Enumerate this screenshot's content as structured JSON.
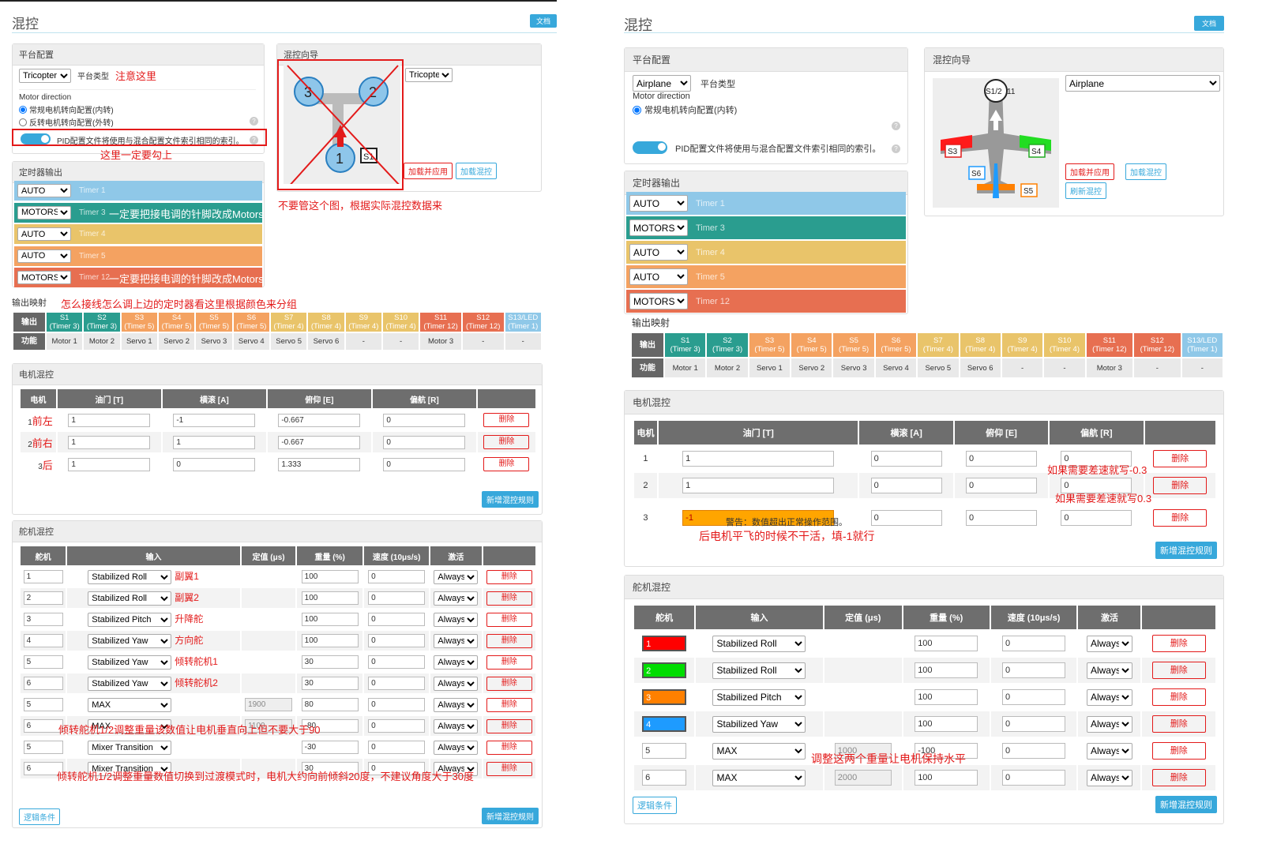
{
  "left": {
    "header": {
      "title": "混控",
      "doc": "文档"
    },
    "platform": {
      "title": "平台配置",
      "type_value": "Tricopter",
      "type_label": "平台类型",
      "note_here": "注意这里",
      "motor_direction": "Motor direction",
      "dir_normal": "常规电机转向配置(内转)",
      "dir_reverse": "反转电机转向配置(外转)",
      "pid_toggle_label": "PID配置文件将使用与混合配置文件索引相同的索引。",
      "note_check": "这里一定要勾上"
    },
    "wizard": {
      "title": "混控向导",
      "type_value": "Tricopter",
      "load_apply": "加载并应用",
      "load_mix": "加载混控",
      "note": "不要管这个图，根据实际混控数据来",
      "motor_labels": [
        "3",
        "2",
        "1"
      ],
      "servo_label": "S1"
    },
    "timers": {
      "title": "定时器输出",
      "rows": [
        {
          "mode": "AUTO",
          "timer": "Timer 1",
          "color": "#8fc8e8"
        },
        {
          "mode": "MOTORS",
          "timer": "Timer 3",
          "color": "#2a9d8f"
        },
        {
          "mode": "AUTO",
          "timer": "Timer 4",
          "color": "#e9c46a"
        },
        {
          "mode": "AUTO",
          "timer": "Timer 5",
          "color": "#f4a261"
        },
        {
          "mode": "MOTORS",
          "timer": "Timer 12",
          "color": "#e76f51"
        }
      ],
      "note_motors": "一定要把接电调的针脚改成Motors"
    },
    "mapping": {
      "title": "输出映射",
      "note": "怎么接线怎么调上边的定时器看这里根据颜色来分组",
      "row_out": "输出",
      "row_fn": "功能",
      "outputs": [
        {
          "s": "S1",
          "t": "(Timer 3)",
          "color": "#2a9d8f",
          "fn": "Motor 1"
        },
        {
          "s": "S2",
          "t": "(Timer 3)",
          "color": "#2a9d8f",
          "fn": "Motor 2"
        },
        {
          "s": "S3",
          "t": "(Timer 5)",
          "color": "#f4a261",
          "fn": "Servo 1"
        },
        {
          "s": "S4",
          "t": "(Timer 5)",
          "color": "#f4a261",
          "fn": "Servo 2"
        },
        {
          "s": "S5",
          "t": "(Timer 5)",
          "color": "#f4a261",
          "fn": "Servo 3"
        },
        {
          "s": "S6",
          "t": "(Timer 5)",
          "color": "#f4a261",
          "fn": "Servo 4"
        },
        {
          "s": "S7",
          "t": "(Timer 4)",
          "color": "#e9c46a",
          "fn": "Servo 5"
        },
        {
          "s": "S8",
          "t": "(Timer 4)",
          "color": "#e9c46a",
          "fn": "Servo 6"
        },
        {
          "s": "S9",
          "t": "(Timer 4)",
          "color": "#e9c46a",
          "fn": "-"
        },
        {
          "s": "S10",
          "t": "(Timer 4)",
          "color": "#e9c46a",
          "fn": "-"
        },
        {
          "s": "S11",
          "t": "(Timer 12)",
          "color": "#e76f51",
          "fn": "Motor 3"
        },
        {
          "s": "S12",
          "t": "(Timer 12)",
          "color": "#e76f51",
          "fn": "-"
        },
        {
          "s": "S13/LED",
          "t": "(Timer 1)",
          "color": "#8fc8e8",
          "fn": "-"
        }
      ]
    },
    "motor_mix": {
      "title": "电机混控",
      "headers": [
        "电机",
        "油门 [T]",
        "横滚 [A]",
        "俯仰 [E]",
        "偏航 [R]",
        ""
      ],
      "rows": [
        {
          "idx": "1",
          "note": "前左",
          "t": "1",
          "a": "-1",
          "e": "-0.667",
          "r": "0"
        },
        {
          "idx": "2",
          "note": "前右",
          "t": "1",
          "a": "1",
          "e": "-0.667",
          "r": "0"
        },
        {
          "idx": "3",
          "note": "后",
          "t": "1",
          "a": "0",
          "e": "1.333",
          "r": "0"
        }
      ],
      "delete": "删除",
      "add": "新增混控规则"
    },
    "servo_mix": {
      "title": "舵机混控",
      "headers": [
        "舵机",
        "输入",
        "定值 (μs)",
        "重量 (%)",
        "速度 (10μs/s)",
        "激活",
        ""
      ],
      "rows": [
        {
          "servo": "1",
          "input": "Stabilized Roll",
          "note": "副翼1",
          "fixed": "",
          "weight": "100",
          "speed": "0",
          "active": "Always"
        },
        {
          "servo": "2",
          "input": "Stabilized Roll",
          "note": "副翼2",
          "fixed": "",
          "weight": "100",
          "speed": "0",
          "active": "Always"
        },
        {
          "servo": "3",
          "input": "Stabilized Pitch",
          "note": "升降舵",
          "fixed": "",
          "weight": "100",
          "speed": "0",
          "active": "Always"
        },
        {
          "servo": "4",
          "input": "Stabilized Yaw",
          "note": "方向舵",
          "fixed": "",
          "weight": "100",
          "speed": "0",
          "active": "Always"
        },
        {
          "servo": "5",
          "input": "Stabilized Yaw",
          "note": "倾转舵机1",
          "fixed": "",
          "weight": "30",
          "speed": "0",
          "active": "Always"
        },
        {
          "servo": "6",
          "input": "Stabilized Yaw",
          "note": "倾转舵机2",
          "fixed": "",
          "weight": "30",
          "speed": "0",
          "active": "Always"
        },
        {
          "servo": "5",
          "input": "MAX",
          "note": "",
          "fixed": "1900",
          "weight": "80",
          "speed": "0",
          "active": "Always"
        },
        {
          "servo": "6",
          "input": "MAX",
          "note": "",
          "fixed": "1100",
          "weight": "-80",
          "speed": "0",
          "active": "Always"
        },
        {
          "servo": "5",
          "input": "Mixer Transition",
          "note": "",
          "fixed": "",
          "weight": "-30",
          "speed": "0",
          "active": "Always"
        },
        {
          "servo": "6",
          "input": "Mixer Transition",
          "note": "",
          "fixed": "",
          "weight": "30",
          "speed": "0",
          "active": "Always"
        }
      ],
      "note_max": "倾转舵机1/2调整重量该数值让电机垂直向上但不要大于90",
      "note_transition": "倾转舵机1/2调整重量数值切换到过渡模式时，电机大约向前倾斜20度，不建议角度大于30度",
      "delete": "删除",
      "logic": "逻辑条件",
      "add": "新增混控规则"
    }
  },
  "right": {
    "header": {
      "title": "混控",
      "doc": "文档"
    },
    "platform": {
      "title": "平台配置",
      "type_value": "Airplane",
      "type_label": "平台类型",
      "motor_direction": "Motor direction",
      "dir_normal": "常规电机转向配置(内转)",
      "pid_toggle_label": "PID配置文件将使用与混合配置文件索引相同的索引。"
    },
    "wizard": {
      "title": "混控向导",
      "type_value": "Airplane",
      "load_apply": "加载并应用",
      "load_mix": "加载混控",
      "refresh": "刷新混控",
      "labels": {
        "motor": "S1/2",
        "motor_num": "11",
        "s3": "S3",
        "s4": "S4",
        "s5": "S5",
        "s6": "S6"
      }
    },
    "timers": {
      "title": "定时器输出",
      "rows": [
        {
          "mode": "AUTO",
          "timer": "Timer 1",
          "color": "#8fc8e8"
        },
        {
          "mode": "MOTORS",
          "timer": "Timer 3",
          "color": "#2a9d8f"
        },
        {
          "mode": "AUTO",
          "timer": "Timer 4",
          "color": "#e9c46a"
        },
        {
          "mode": "AUTO",
          "timer": "Timer 5",
          "color": "#f4a261"
        },
        {
          "mode": "MOTORS",
          "timer": "Timer 12",
          "color": "#e76f51"
        }
      ]
    },
    "mapping": {
      "title": "输出映射",
      "row_out": "输出",
      "row_fn": "功能"
    },
    "motor_mix": {
      "title": "电机混控",
      "headers": [
        "电机",
        "油门 [T]",
        "横滚 [A]",
        "俯仰 [E]",
        "偏航 [R]",
        ""
      ],
      "rows": [
        {
          "idx": "1",
          "t": "1",
          "a": "0",
          "e": "0",
          "r": "0"
        },
        {
          "idx": "2",
          "t": "1",
          "a": "0",
          "e": "0",
          "r": "0"
        },
        {
          "idx": "3",
          "t": "-1",
          "a": "0",
          "e": "0",
          "r": "0"
        }
      ],
      "warning": "警告：数值超出正常操作范围。",
      "note_r1": "如果需要差速就写-0.3",
      "note_r2": "如果需要差速就写0.3",
      "note_rear": "后电机平飞的时候不干活，填-1就行",
      "delete": "删除",
      "add": "新增混控规则"
    },
    "servo_mix": {
      "title": "舵机混控",
      "headers": [
        "舵机",
        "输入",
        "定值 (μs)",
        "重量 (%)",
        "速度 (10μs/s)",
        "激活",
        ""
      ],
      "rows": [
        {
          "servo": "1",
          "color": "#ff0000",
          "input": "Stabilized Roll",
          "fixed": "",
          "weight": "100",
          "speed": "0",
          "active": "Always"
        },
        {
          "servo": "2",
          "color": "#00dd00",
          "input": "Stabilized Roll",
          "fixed": "",
          "weight": "100",
          "speed": "0",
          "active": "Always"
        },
        {
          "servo": "3",
          "color": "#ff8000",
          "input": "Stabilized Pitch",
          "fixed": "",
          "weight": "100",
          "speed": "0",
          "active": "Always"
        },
        {
          "servo": "4",
          "color": "#1e9bff",
          "input": "Stabilized Yaw",
          "fixed": "",
          "weight": "100",
          "speed": "0",
          "active": "Always"
        },
        {
          "servo": "5",
          "color": "",
          "input": "MAX",
          "fixed": "1000",
          "weight": "-100",
          "speed": "0",
          "active": "Always"
        },
        {
          "servo": "6",
          "color": "",
          "input": "MAX",
          "fixed": "2000",
          "weight": "100",
          "speed": "0",
          "active": "Always"
        }
      ],
      "note": "调整这两个重量让电机保持水平",
      "delete": "删除",
      "logic": "逻辑条件",
      "add": "新增混控规则"
    }
  }
}
